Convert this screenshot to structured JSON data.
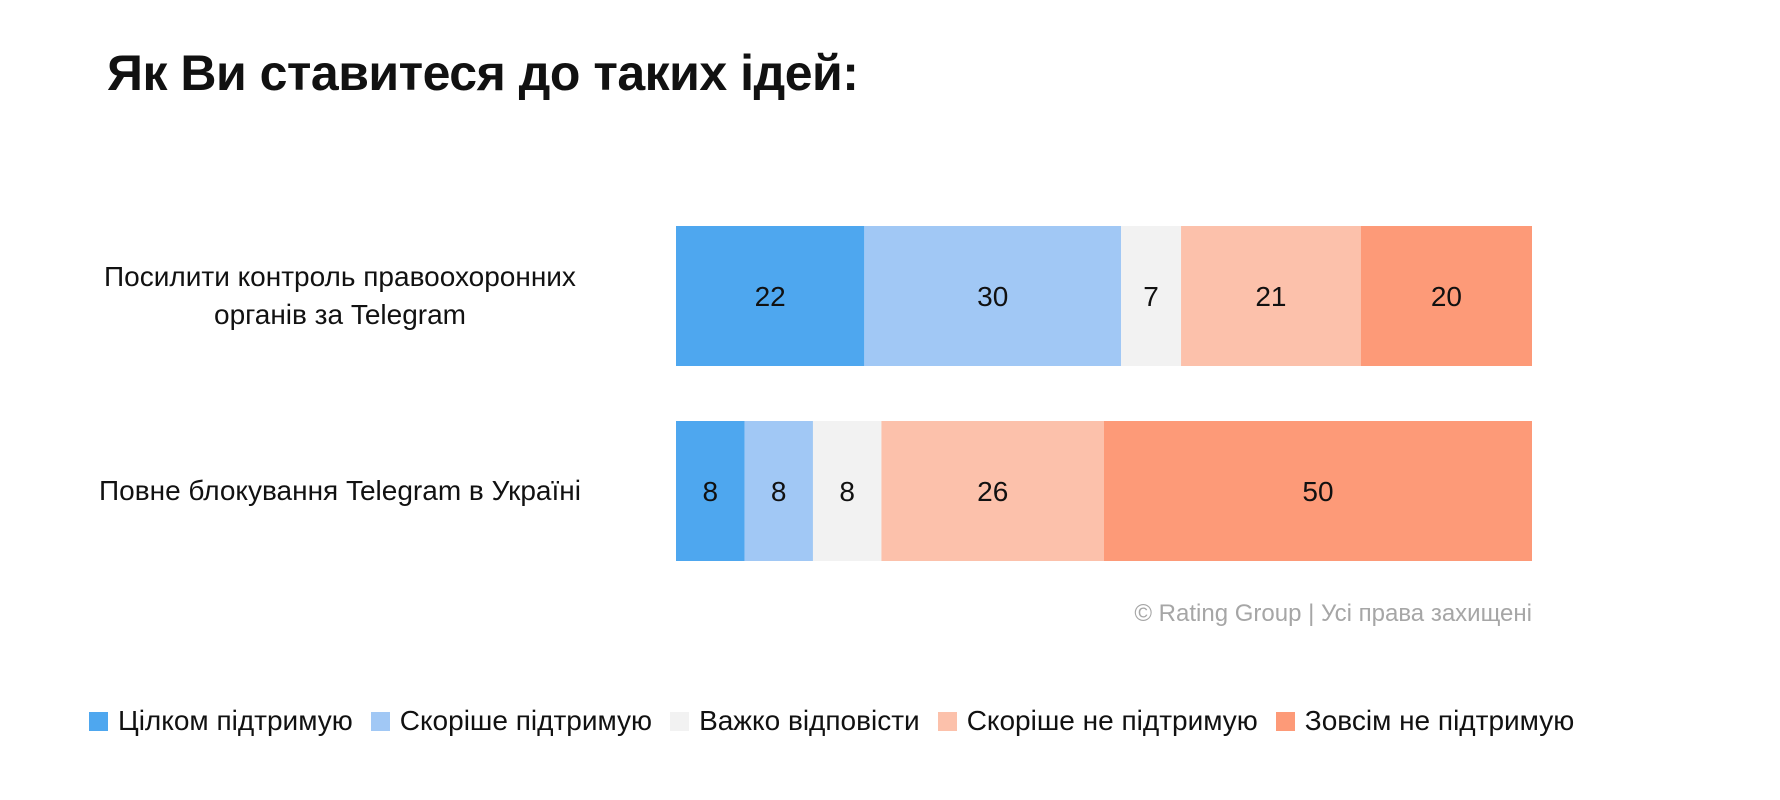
{
  "title": "Як Ви ставитеся до таких ідей:",
  "copyright": "© Rating Group | Усі права захищені",
  "chart_data": {
    "type": "bar",
    "orientation": "horizontal",
    "stacked": true,
    "title": "Як Ви ставитеся до таких ідей:",
    "categories": [
      "Посилити контроль правоохоронних органів за Telegram",
      "Повне блокування Telegram в Україні"
    ],
    "category_lines": [
      [
        "Посилити контроль правоохоронних",
        "органів за Telegram"
      ],
      [
        "Повне блокування Telegram в Україні"
      ]
    ],
    "series": [
      {
        "name": "Цілком підтримую",
        "color": "#4ea7ef",
        "values": [
          22,
          8
        ]
      },
      {
        "name": "Скоріше підтримую",
        "color": "#a1c8f5",
        "values": [
          30,
          8
        ]
      },
      {
        "name": "Важко відповісти",
        "color": "#f2f2f2",
        "values": [
          7,
          8
        ]
      },
      {
        "name": "Скоріше не підтримую",
        "color": "#fcc1ab",
        "values": [
          21,
          26
        ]
      },
      {
        "name": "Зовсім не підтримую",
        "color": "#fd9a78",
        "values": [
          20,
          50
        ]
      }
    ],
    "xlim": [
      0,
      100
    ],
    "data_labels": true,
    "grid": false,
    "legend_position": "bottom"
  }
}
